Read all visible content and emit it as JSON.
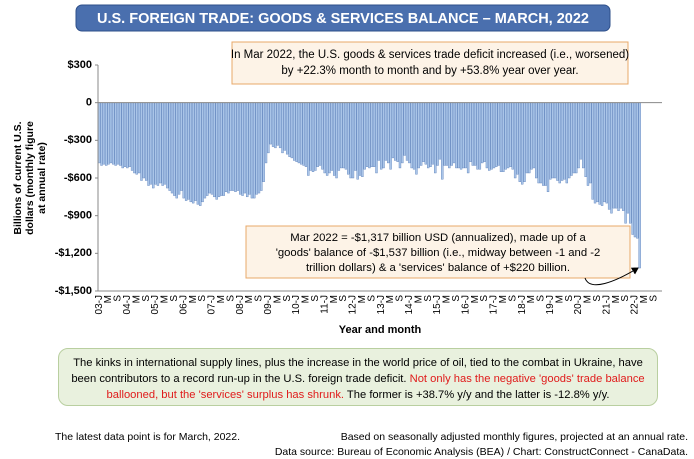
{
  "chart_data": {
    "type": "bar",
    "title": "U.S. FOREIGN TRADE: GOODS & SERVICES BALANCE – MARCH, 2022",
    "y_label": [
      "Billions of current U.S.",
      "dollars (monthly figure",
      "at annual rate)"
    ],
    "x_label": "Year and month",
    "annotation_top": [
      "In Mar 2022, the U.S. goods & services trade deficit increased (i.e., worsened)",
      "by +22.3% month to month and by +53.8% year over year."
    ],
    "annotation_bottom": [
      "Mar 2022  = -$1,317 billion USD (annualized), made up of a",
      "'goods' balance of -$1,537 billion (i.e., midway between -1 and -2",
      "trillion dollars) & a 'services' balance of +$220 billion."
    ],
    "note": {
      "text": "The kinks in international supply lines, plus the increase in the world price of oil, tied to the combat in Ukraine, have been contributors to a record run-up in the U.S. foreign trade deficit. ",
      "text_red": "Not only has the negative 'goods' trade  balance ballooned, but the 'services' surplus has shrunk.",
      "text_end": " The former is +38.7% y/y and the latter is -12.8% y/y."
    },
    "footer_left": "The latest data point is for March, 2022.",
    "footer_right": [
      "Based on seasonally adjusted monthly figures, projected at an annual rate.",
      "Data source: Bureau of Economic Analysis (BEA) / Chart: ConstructConnect - CanaData."
    ],
    "color": "#aac5e8",
    "edge_color": "#5a7fba",
    "ylim": [
      -1500,
      300
    ],
    "yticks": [
      {
        "value": 300,
        "label": "$300"
      },
      0,
      {
        "value": -300,
        "label": "-$300"
      },
      {
        "value": -600,
        "label": "-$600"
      },
      {
        "value": -900,
        "label": "-$900"
      },
      {
        "value": -1200,
        "label": "-$1,200"
      },
      {
        "value": -1500,
        "label": "-$1,500"
      }
    ],
    "categories": [
      "03-J",
      null,
      null,
      null,
      "M",
      null,
      null,
      null,
      "S",
      null,
      null,
      null,
      "04-J",
      null,
      null,
      null,
      "M",
      null,
      null,
      null,
      "S",
      null,
      null,
      null,
      "05-J",
      null,
      null,
      null,
      "M",
      null,
      null,
      null,
      "S",
      null,
      null,
      null,
      "06-J",
      null,
      null,
      null,
      "M",
      null,
      null,
      null,
      "S",
      null,
      null,
      null,
      "07-J",
      null,
      null,
      null,
      "M",
      null,
      null,
      null,
      "S",
      null,
      null,
      null,
      "08-J",
      null,
      null,
      null,
      "M",
      null,
      null,
      null,
      "S",
      null,
      null,
      null,
      "09-J",
      null,
      null,
      null,
      "M",
      null,
      null,
      null,
      "S",
      null,
      null,
      null,
      "10-J",
      null,
      null,
      null,
      "M",
      null,
      null,
      null,
      "S",
      null,
      null,
      null,
      "11-J",
      null,
      null,
      null,
      "M",
      null,
      null,
      null,
      "S",
      null,
      null,
      null,
      "12-J",
      null,
      null,
      null,
      "M",
      null,
      null,
      null,
      "S",
      null,
      null,
      null,
      "13-J",
      null,
      null,
      null,
      "M",
      null,
      null,
      null,
      "S",
      null,
      null,
      null,
      "14-J",
      null,
      null,
      null,
      "M",
      null,
      null,
      null,
      "S",
      null,
      null,
      null,
      "15-J",
      null,
      null,
      null,
      "M",
      null,
      null,
      null,
      "S",
      null,
      null,
      null,
      "16-J",
      null,
      null,
      null,
      "M",
      null,
      null,
      null,
      "S",
      null,
      null,
      null,
      "17-J",
      null,
      null,
      null,
      "M",
      null,
      null,
      null,
      "S",
      null,
      null,
      null,
      "18-J",
      null,
      null,
      null,
      "M",
      null,
      null,
      null,
      "S",
      null,
      null,
      null,
      "19-J",
      null,
      null,
      null,
      "M",
      null,
      null,
      null,
      "S",
      null,
      null,
      null,
      "20-J",
      null,
      null,
      null,
      "M",
      null,
      null,
      null,
      "S",
      null,
      null,
      null,
      "21-J",
      null,
      null,
      null,
      "M",
      null,
      null,
      null,
      "S",
      null,
      null,
      null,
      "22-J",
      null,
      null,
      null,
      "M",
      null,
      null,
      null,
      "S",
      null,
      null,
      null
    ],
    "values": [
      -480,
      -500,
      -490,
      -500,
      -490,
      -480,
      -490,
      -500,
      -490,
      -500,
      -520,
      -510,
      -520,
      -510,
      -540,
      -560,
      -570,
      -560,
      -620,
      -600,
      -620,
      -660,
      -650,
      -680,
      -650,
      -660,
      -640,
      -660,
      -650,
      -680,
      -700,
      -720,
      -740,
      -760,
      -730,
      -700,
      -760,
      -780,
      -770,
      -790,
      -800,
      -780,
      -810,
      -820,
      -790,
      -760,
      -740,
      -720,
      -730,
      -750,
      -770,
      -750,
      -740,
      -740,
      -710,
      -720,
      -700,
      -700,
      -710,
      -700,
      -730,
      -740,
      -720,
      -750,
      -730,
      -760,
      -760,
      -730,
      -720,
      -700,
      -630,
      -480,
      -400,
      -330,
      -350,
      -360,
      -340,
      -360,
      -400,
      -380,
      -410,
      -430,
      -440,
      -460,
      -470,
      -480,
      -490,
      -500,
      -510,
      -580,
      -540,
      -550,
      -540,
      -510,
      -500,
      -530,
      -560,
      -580,
      -560,
      -540,
      -580,
      -600,
      -540,
      -520,
      -520,
      -530,
      -570,
      -600,
      -600,
      -540,
      -610,
      -580,
      -590,
      -530,
      -510,
      -520,
      -510,
      -510,
      -560,
      -460,
      -530,
      -520,
      -460,
      -480,
      -530,
      -440,
      -460,
      -470,
      -520,
      -480,
      -420,
      -460,
      -480,
      -520,
      -530,
      -570,
      -520,
      -500,
      -470,
      -490,
      -520,
      -510,
      -490,
      -560,
      -500,
      -450,
      -610,
      -500,
      -500,
      -520,
      -500,
      -480,
      -520,
      -520,
      -530,
      -520,
      -520,
      -560,
      -470,
      -500,
      -500,
      -530,
      -530,
      -480,
      -470,
      -520,
      -540,
      -530,
      -520,
      -510,
      -500,
      -550,
      -550,
      -530,
      -520,
      -510,
      -530,
      -600,
      -570,
      -630,
      -650,
      -630,
      -560,
      -560,
      -530,
      -520,
      -600,
      -640,
      -640,
      -660,
      -660,
      -710,
      -610,
      -600,
      -600,
      -620,
      -640,
      -620,
      -610,
      -640,
      -600,
      -580,
      -560,
      -560,
      -520,
      -450,
      -520,
      -590,
      -660,
      -640,
      -770,
      -800,
      -790,
      -810,
      -820,
      -790,
      -800,
      -850,
      -880,
      -840,
      -840,
      -860,
      -840,
      -860,
      -960,
      -880,
      -960,
      -1050,
      -1070,
      -1080,
      -1317,
      null,
      null,
      null,
      null,
      null,
      null,
      null,
      null,
      null
    ]
  }
}
